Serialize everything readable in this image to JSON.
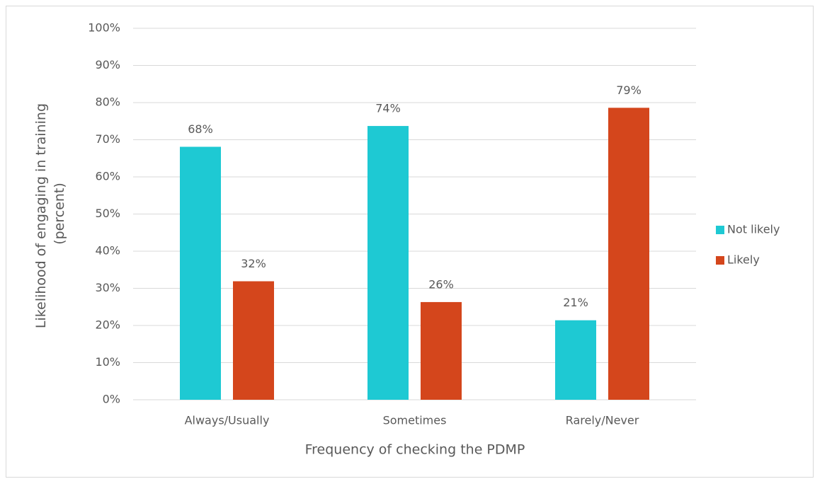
{
  "chart_data": {
    "type": "bar",
    "xlabel": "Frequency of checking the PDMP",
    "ylabel": [
      "Likelihood of engaging in training",
      "(percent)"
    ],
    "categories": [
      "Always/Usually",
      "Sometimes",
      "Rarely/Never"
    ],
    "series": [
      {
        "name": "Not likely",
        "color": "#1ec9d3",
        "values": [
          68.1,
          73.7,
          21.4
        ],
        "value_labels": [
          "68%",
          "74%",
          "21%"
        ]
      },
      {
        "name": "Likely",
        "color": "#d4461c",
        "values": [
          31.9,
          26.3,
          78.6
        ],
        "value_labels": [
          "32%",
          "26%",
          "79%"
        ]
      }
    ],
    "ylim": [
      0,
      100
    ],
    "yticks": [
      {
        "value": 0,
        "label": "0%"
      },
      {
        "value": 10,
        "label": "10%"
      },
      {
        "value": 20,
        "label": "20%"
      },
      {
        "value": 30,
        "label": "30%"
      },
      {
        "value": 40,
        "label": "40%"
      },
      {
        "value": 50,
        "label": "50%"
      },
      {
        "value": 60,
        "label": "60%"
      },
      {
        "value": 70,
        "label": "70%"
      },
      {
        "value": 80,
        "label": "80%"
      },
      {
        "value": 90,
        "label": "90%"
      },
      {
        "value": 100,
        "label": "100%"
      }
    ],
    "grid": true,
    "legend": "right"
  }
}
